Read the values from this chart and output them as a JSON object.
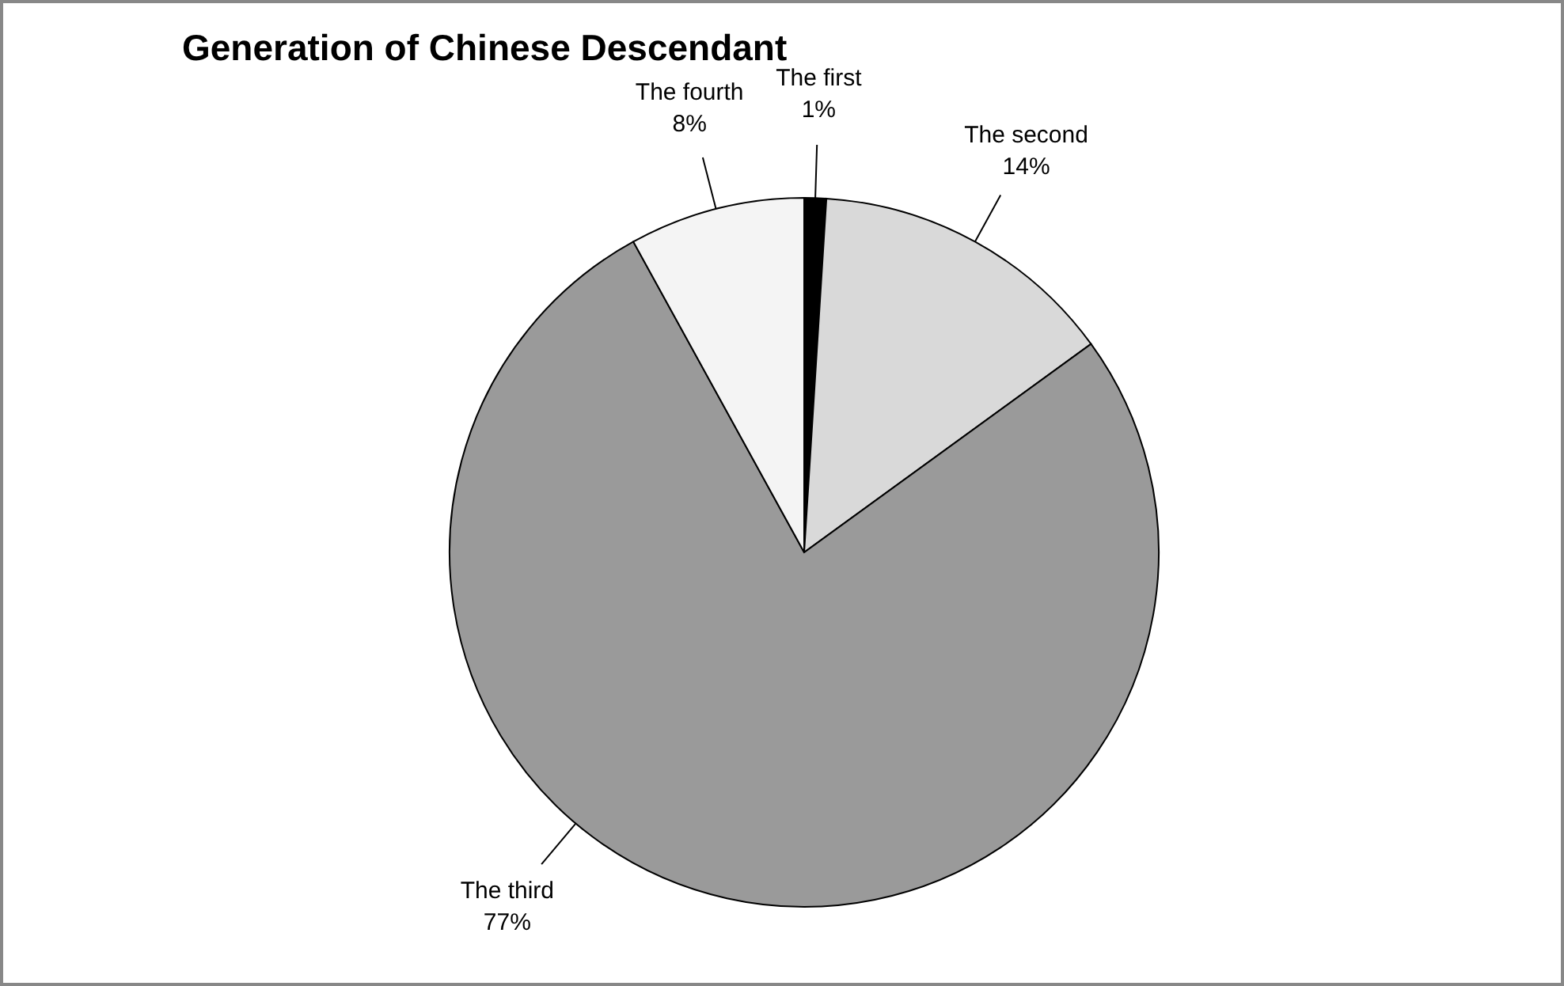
{
  "chart_data": {
    "type": "pie",
    "title": "Generation of Chinese Descendant",
    "categories": [
      "The first",
      "The second",
      "The third",
      "The fourth"
    ],
    "values": [
      1,
      14,
      77,
      8
    ],
    "colors": [
      "#000000",
      "#d9d9d9",
      "#9a9a9a",
      "#f4f4f4"
    ],
    "value_labels": [
      "1%",
      "14%",
      "77%",
      "8%"
    ]
  }
}
